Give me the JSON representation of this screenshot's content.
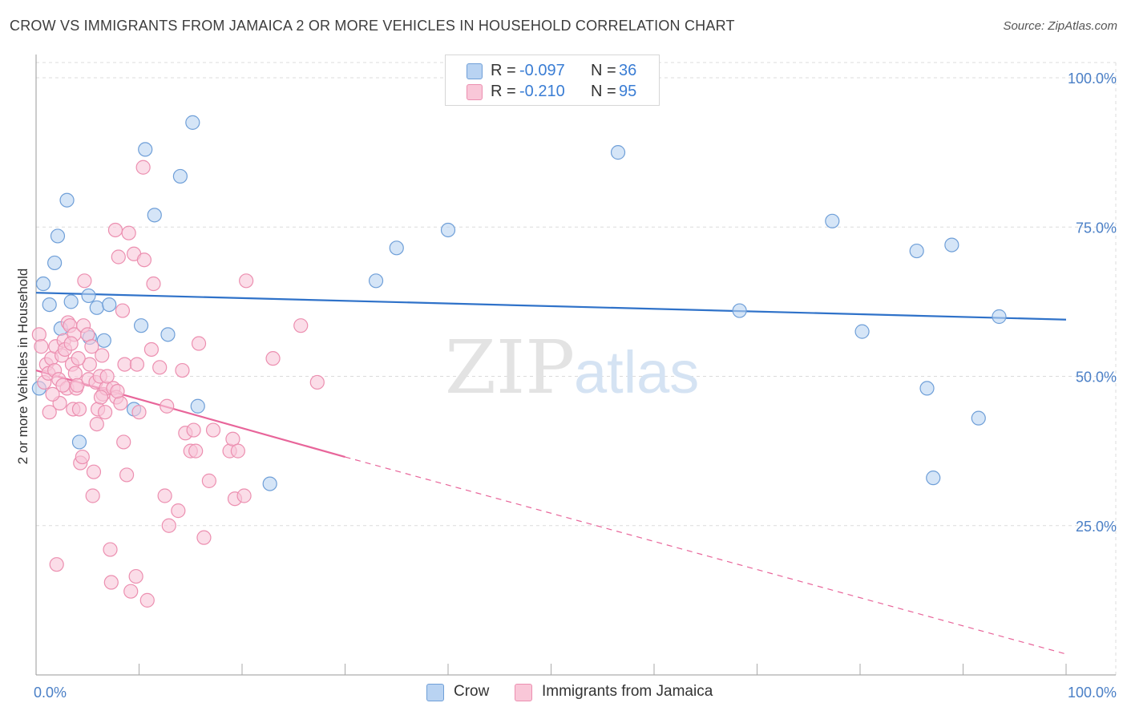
{
  "title": "CROW VS IMMIGRANTS FROM JAMAICA 2 OR MORE VEHICLES IN HOUSEHOLD CORRELATION CHART",
  "source": "Source: ZipAtlas.com",
  "watermark": {
    "zip": "ZIP",
    "atlas": "atlas"
  },
  "legend": {
    "r_label": "R =",
    "n_label": "N =",
    "rows": [
      {
        "r": "-0.097",
        "n": "36"
      },
      {
        "r": "-0.210",
        "n": "95"
      }
    ]
  },
  "colors": {
    "crow_fill": "#b9d3f2",
    "crow_stroke": "#6f9fd8",
    "crow_line": "#2f72c9",
    "jam_fill": "#f9c7d8",
    "jam_stroke": "#ec8fb0",
    "jam_line": "#e8659a",
    "tick_text": "#4a7fc6",
    "grid": "#dcdcdc"
  },
  "chart_data": {
    "type": "scatter",
    "title": "CROW VS IMMIGRANTS FROM JAMAICA 2 OR MORE VEHICLES IN HOUSEHOLD CORRELATION CHART",
    "xlabel": "",
    "ylabel": "2 or more Vehicles in Household",
    "xlim": [
      0,
      100
    ],
    "ylim": [
      0,
      105
    ],
    "x_tick_labels": [
      "0.0%",
      "100.0%"
    ],
    "y_ticks": [
      25,
      50,
      75,
      100
    ],
    "y_tick_labels": [
      "25.0%",
      "50.0%",
      "75.0%",
      "100.0%"
    ],
    "grid": true,
    "legend_position": "bottom",
    "series": [
      {
        "name": "Crow",
        "trend": {
          "x": [
            0,
            100
          ],
          "y": [
            64.0,
            59.5
          ],
          "style": "solid"
        },
        "points": [
          [
            0.3,
            48.0
          ],
          [
            0.7,
            65.5
          ],
          [
            1.3,
            62.0
          ],
          [
            1.8,
            69.0
          ],
          [
            2.1,
            73.5
          ],
          [
            2.4,
            58.0
          ],
          [
            3.0,
            79.5
          ],
          [
            3.4,
            62.5
          ],
          [
            4.2,
            39.0
          ],
          [
            5.1,
            63.5
          ],
          [
            5.2,
            56.5
          ],
          [
            5.9,
            61.5
          ],
          [
            6.6,
            56.0
          ],
          [
            7.1,
            62.0
          ],
          [
            9.5,
            44.5
          ],
          [
            10.2,
            58.5
          ],
          [
            10.6,
            88.0
          ],
          [
            11.5,
            77.0
          ],
          [
            12.8,
            57.0
          ],
          [
            14.0,
            83.5
          ],
          [
            15.2,
            92.5
          ],
          [
            15.7,
            45.0
          ],
          [
            22.7,
            32.0
          ],
          [
            33.0,
            66.0
          ],
          [
            35.0,
            71.5
          ],
          [
            40.0,
            74.5
          ],
          [
            56.5,
            87.5
          ],
          [
            68.3,
            61.0
          ],
          [
            77.3,
            76.0
          ],
          [
            80.2,
            57.5
          ],
          [
            85.5,
            71.0
          ],
          [
            86.5,
            48.0
          ],
          [
            87.1,
            33.0
          ],
          [
            88.9,
            72.0
          ],
          [
            91.5,
            43.0
          ],
          [
            93.5,
            60.0
          ]
        ]
      },
      {
        "name": "Immigrants from Jamaica",
        "trend": {
          "x": [
            0,
            30
          ],
          "y": [
            51.0,
            36.5
          ],
          "style": "solid",
          "dash_x": [
            30,
            100
          ],
          "dash_y": [
            36.5,
            3.5
          ]
        },
        "points": [
          [
            0.3,
            57.0
          ],
          [
            0.5,
            55.0
          ],
          [
            0.8,
            49.0
          ],
          [
            1.0,
            52.0
          ],
          [
            1.2,
            50.5
          ],
          [
            1.3,
            44.0
          ],
          [
            1.5,
            53.0
          ],
          [
            1.8,
            51.0
          ],
          [
            1.9,
            55.0
          ],
          [
            2.0,
            18.5
          ],
          [
            2.2,
            49.5
          ],
          [
            2.3,
            45.5
          ],
          [
            2.5,
            53.5
          ],
          [
            2.7,
            56.0
          ],
          [
            2.8,
            54.5
          ],
          [
            3.0,
            48.0
          ],
          [
            3.1,
            59.0
          ],
          [
            3.3,
            58.5
          ],
          [
            3.5,
            52.0
          ],
          [
            3.6,
            44.5
          ],
          [
            3.7,
            57.0
          ],
          [
            3.8,
            50.5
          ],
          [
            3.9,
            48.0
          ],
          [
            4.0,
            48.5
          ],
          [
            4.2,
            44.5
          ],
          [
            4.3,
            35.5
          ],
          [
            4.5,
            36.5
          ],
          [
            4.6,
            58.5
          ],
          [
            4.7,
            66.0
          ],
          [
            5.0,
            57.0
          ],
          [
            5.1,
            49.5
          ],
          [
            5.2,
            52.0
          ],
          [
            5.4,
            55.0
          ],
          [
            5.5,
            30.0
          ],
          [
            5.6,
            34.0
          ],
          [
            5.8,
            49.0
          ],
          [
            5.9,
            42.0
          ],
          [
            6.0,
            44.5
          ],
          [
            6.2,
            50.0
          ],
          [
            6.4,
            53.5
          ],
          [
            6.5,
            47.0
          ],
          [
            6.7,
            44.0
          ],
          [
            6.8,
            48.0
          ],
          [
            6.9,
            50.0
          ],
          [
            7.2,
            21.0
          ],
          [
            7.3,
            15.5
          ],
          [
            7.5,
            48.0
          ],
          [
            7.7,
            74.5
          ],
          [
            7.8,
            46.5
          ],
          [
            8.0,
            70.0
          ],
          [
            8.2,
            45.5
          ],
          [
            8.4,
            61.0
          ],
          [
            8.5,
            39.0
          ],
          [
            8.6,
            52.0
          ],
          [
            8.8,
            33.5
          ],
          [
            9.0,
            74.0
          ],
          [
            9.2,
            14.0
          ],
          [
            9.5,
            70.5
          ],
          [
            9.7,
            16.5
          ],
          [
            9.8,
            52.0
          ],
          [
            10.0,
            44.0
          ],
          [
            10.4,
            85.0
          ],
          [
            10.5,
            69.5
          ],
          [
            10.8,
            12.5
          ],
          [
            11.2,
            54.5
          ],
          [
            11.4,
            65.5
          ],
          [
            12.0,
            51.5
          ],
          [
            12.5,
            30.0
          ],
          [
            12.7,
            45.0
          ],
          [
            12.9,
            25.0
          ],
          [
            13.8,
            27.5
          ],
          [
            14.2,
            51.0
          ],
          [
            14.5,
            40.5
          ],
          [
            15.0,
            37.5
          ],
          [
            15.3,
            41.0
          ],
          [
            15.5,
            37.5
          ],
          [
            15.8,
            55.5
          ],
          [
            16.3,
            23.0
          ],
          [
            16.8,
            32.5
          ],
          [
            17.2,
            41.0
          ],
          [
            18.8,
            37.5
          ],
          [
            19.1,
            39.5
          ],
          [
            19.3,
            29.5
          ],
          [
            19.6,
            37.5
          ],
          [
            20.2,
            30.0
          ],
          [
            20.4,
            66.0
          ],
          [
            23.0,
            53.0
          ],
          [
            25.7,
            58.5
          ],
          [
            27.3,
            49.0
          ],
          [
            1.6,
            47.0
          ],
          [
            2.6,
            48.5
          ],
          [
            3.4,
            55.5
          ],
          [
            4.1,
            53.0
          ],
          [
            6.3,
            46.5
          ],
          [
            7.9,
            47.5
          ]
        ]
      }
    ]
  },
  "bottom_legend": [
    "Crow",
    "Immigrants from Jamaica"
  ]
}
